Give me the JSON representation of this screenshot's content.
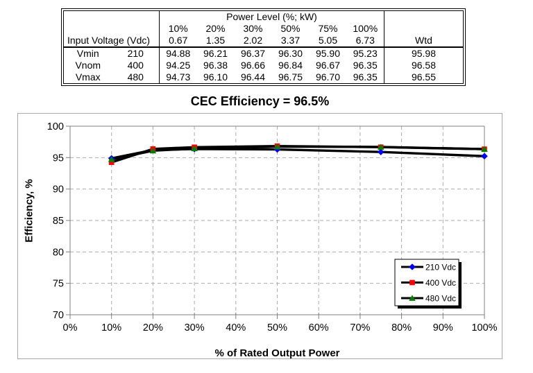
{
  "table": {
    "power_level_header": "Power Level (%; kW)",
    "input_voltage_header": "Input Voltage (Vdc)",
    "wtd_header": "Wtd",
    "pct_labels": [
      "10%",
      "20%",
      "30%",
      "50%",
      "75%",
      "100%"
    ],
    "kw_values": [
      "0.67",
      "1.35",
      "2.02",
      "3.37",
      "5.05",
      "6.73"
    ],
    "rows": [
      {
        "name": "Vmin",
        "vdc": "210",
        "values": [
          "94.88",
          "96.21",
          "96.37",
          "96.30",
          "95.90",
          "95.23"
        ],
        "wtd": "95.98"
      },
      {
        "name": "Vnom",
        "vdc": "400",
        "values": [
          "94.25",
          "96.38",
          "96.66",
          "96.84",
          "96.67",
          "96.35"
        ],
        "wtd": "96.58"
      },
      {
        "name": "Vmax",
        "vdc": "480",
        "values": [
          "94.73",
          "96.10",
          "96.44",
          "96.75",
          "96.70",
          "96.35"
        ],
        "wtd": "96.55"
      }
    ]
  },
  "chart_data": {
    "type": "line",
    "title": "CEC Efficiency = 96.5%",
    "xlabel": "% of Rated Output Power",
    "ylabel": "Efficiency, %",
    "x": [
      10,
      20,
      30,
      50,
      75,
      100
    ],
    "xlim": [
      0,
      100
    ],
    "ylim": [
      70,
      100
    ],
    "xtick_labels": [
      "0%",
      "10%",
      "20%",
      "30%",
      "40%",
      "50%",
      "60%",
      "70%",
      "80%",
      "90%",
      "100%"
    ],
    "ytick_labels": [
      "70",
      "75",
      "80",
      "85",
      "90",
      "95",
      "100"
    ],
    "grid": true,
    "legend_position": "lower right",
    "colors": {
      "line": "#000000",
      "grid": "#ababab",
      "plot_border": "#808080",
      "tick": "#808080",
      "legend_border": "#000000",
      "legend_shadow": "#000000"
    },
    "series": [
      {
        "name": "210 Vdc",
        "marker": "diamond",
        "marker_color": "#0000ff",
        "values": [
          94.88,
          96.21,
          96.37,
          96.3,
          95.9,
          95.23
        ]
      },
      {
        "name": "400 Vdc",
        "marker": "square",
        "marker_color": "#ff0000",
        "values": [
          94.25,
          96.38,
          96.66,
          96.84,
          96.67,
          96.35
        ]
      },
      {
        "name": "480 Vdc",
        "marker": "triangle",
        "marker_color": "#008000",
        "values": [
          94.73,
          96.1,
          96.44,
          96.75,
          96.7,
          96.35
        ]
      }
    ]
  }
}
